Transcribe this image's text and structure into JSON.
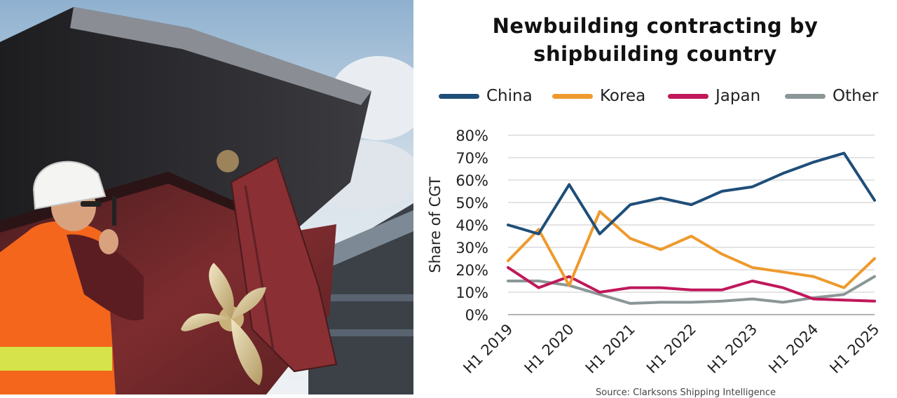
{
  "chart_data": {
    "type": "line",
    "title": "Newbuilding contracting by shipbuilding country",
    "title_lines": [
      "Newbuilding contracting by",
      "shipbuilding country"
    ],
    "ylabel": "Share of CGT",
    "xlabel": "",
    "ylim": [
      0,
      80
    ],
    "yticks": [
      "0%",
      "10%",
      "20%",
      "30%",
      "40%",
      "50%",
      "60%",
      "70%",
      "80%"
    ],
    "xtick_labels": [
      "H1 2019",
      "H1 2020",
      "H1 2021",
      "H1 2022",
      "H1 2023",
      "H1 2024",
      "H1 2025"
    ],
    "x": [
      "H1 2019",
      "H2 2019",
      "H1 2020",
      "H2 2020",
      "H1 2021",
      "H2 2021",
      "H1 2022",
      "H2 2022",
      "H1 2023",
      "H2 2023",
      "H1 2024",
      "H2 2024",
      "H1 2025"
    ],
    "grid": true,
    "legend_position": "top",
    "series": [
      {
        "name": "China",
        "color": "#1f4e79",
        "values": [
          40,
          36,
          58,
          36,
          49,
          52,
          49,
          55,
          57,
          63,
          68,
          72,
          51
        ]
      },
      {
        "name": "Korea",
        "color": "#ee9a2e",
        "values": [
          24,
          38,
          13,
          46,
          34,
          29,
          35,
          27,
          21,
          19,
          17,
          12,
          25
        ]
      },
      {
        "name": "Japan",
        "color": "#c0185a",
        "values": [
          21,
          12,
          17,
          10,
          12,
          12,
          11,
          11,
          15,
          12,
          7,
          6.5,
          6
        ]
      },
      {
        "name": "Other",
        "color": "#8c9696",
        "values": [
          15,
          15,
          13,
          9,
          5,
          5.5,
          5.5,
          6,
          7,
          5.5,
          7.5,
          9,
          17
        ]
      }
    ],
    "source_note": "Source: Clarksons Shipping Intelligence"
  },
  "photo": {
    "description_icon": "ship-hull-and-propeller-photo",
    "colors": {
      "sky": "#c9d7e3",
      "hull": "#6e2a2c",
      "hull_dark": "#2b2b2e",
      "vest": "#f4661b"
    }
  }
}
